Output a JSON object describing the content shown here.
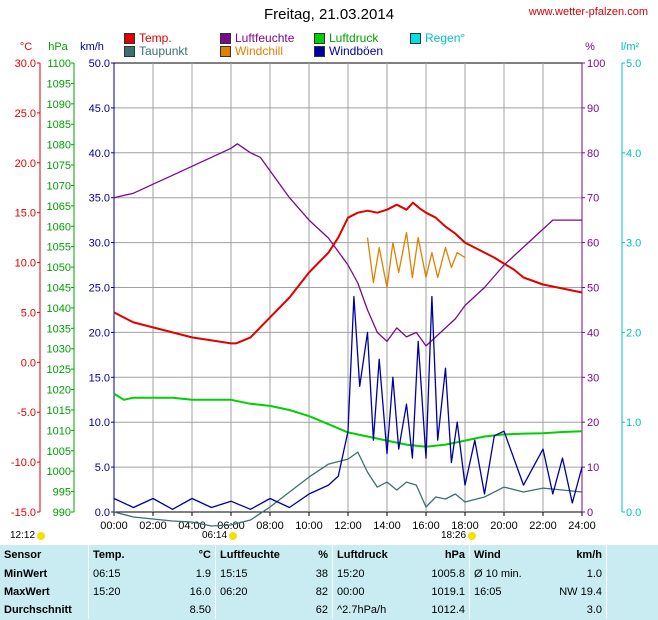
{
  "site": "www.wetter-pfalzen.com",
  "title": "Freitag, 21.03.2014",
  "legend": [
    {
      "label": "Temp.",
      "color": "#e00000"
    },
    {
      "label": "Taupunkt",
      "color": "#3c7070"
    },
    {
      "label": "Luftfeuchte",
      "color": "#7a0a8c"
    },
    {
      "label": "Windchill",
      "color": "#e08000"
    },
    {
      "label": "Luftdruck",
      "color": "#00d000"
    },
    {
      "label": "Windböen",
      "color": "#0000a0"
    },
    {
      "label": "Regen°",
      "color": "#00e0e0"
    }
  ],
  "sun": {
    "sunrise": "06:14",
    "sunset": "18:26",
    "moon": "12:12"
  },
  "chart_data": {
    "type": "line",
    "x_ticks": [
      "00:00",
      "02:00",
      "04:00",
      "06:00",
      "08:00",
      "10:00",
      "12:00",
      "14:00",
      "16:00",
      "18:00",
      "20:00",
      "22:00",
      "24:00"
    ],
    "axes": {
      "temp": {
        "unit": "°C",
        "ticks": [
          "30.0",
          "25.0",
          "20.0",
          "15.0",
          "10.0",
          "5.0",
          "0.0",
          "-5.0",
          "-10.0",
          "-15.0"
        ],
        "range": [
          -15,
          30
        ]
      },
      "pressure": {
        "unit": "hPa",
        "ticks": [
          "1100",
          "1095",
          "1090",
          "1085",
          "1080",
          "1075",
          "1070",
          "1065",
          "1060",
          "1055",
          "1050",
          "1045",
          "1040",
          "1035",
          "1030",
          "1025",
          "1020",
          "1015",
          "1010",
          "1005",
          "1000",
          "995",
          "990"
        ],
        "range": [
          990,
          1100
        ]
      },
      "wind": {
        "unit": "km/h",
        "ticks": [
          "50.0",
          "45.0",
          "40.0",
          "35.0",
          "30.0",
          "25.0",
          "20.0",
          "15.0",
          "10.0",
          "5.0",
          "0.0"
        ],
        "range": [
          0,
          50
        ]
      },
      "humidity": {
        "unit": "%",
        "ticks": [
          "100",
          "90",
          "80",
          "70",
          "60",
          "50",
          "40",
          "30",
          "20",
          "10",
          "0"
        ],
        "range": [
          0,
          100
        ]
      },
      "rain": {
        "unit": "l/m²",
        "ticks": [
          "5.0",
          "4.0",
          "3.0",
          "2.0",
          "1.0",
          "0.0"
        ],
        "range": [
          0,
          5
        ]
      }
    },
    "series": [
      {
        "name": "Temp.",
        "axis": "temp",
        "color": "#e00000",
        "x": [
          0,
          1,
          2,
          3,
          4,
          5,
          6,
          6.25,
          7,
          8,
          9,
          10,
          11,
          11.5,
          12,
          12.5,
          13,
          13.5,
          14,
          14.5,
          15,
          15.33,
          15.7,
          16,
          16.5,
          17,
          17.5,
          18,
          19,
          19.5,
          20,
          20.5,
          21,
          22,
          23,
          24
        ],
        "y": [
          5.0,
          4.0,
          3.5,
          3.0,
          2.5,
          2.2,
          1.9,
          1.9,
          2.5,
          4.5,
          6.5,
          9.0,
          11.0,
          12.5,
          14.5,
          15.0,
          15.2,
          15.0,
          15.3,
          15.8,
          15.3,
          16.0,
          15.4,
          15.0,
          14.5,
          13.6,
          12.9,
          12.0,
          11.0,
          10.5,
          9.9,
          9.3,
          8.5,
          7.8,
          7.4,
          7.0
        ]
      },
      {
        "name": "Taupunkt",
        "axis": "temp",
        "color": "#3c7070",
        "x": [
          0,
          1,
          2,
          3,
          4,
          5,
          6,
          7,
          8,
          9,
          10,
          11,
          12,
          12.5,
          13,
          13.5,
          14,
          14.5,
          15,
          15.5,
          16,
          16.5,
          17,
          17.5,
          18,
          19,
          20,
          21,
          22,
          23,
          24
        ],
        "y": [
          -15.0,
          -15.5,
          -15.7,
          -15.9,
          -16.0,
          -16.4,
          -16.3,
          -15.8,
          -14.5,
          -13.0,
          -11.5,
          -10.2,
          -9.7,
          -9.0,
          -11.0,
          -12.5,
          -12.0,
          -12.8,
          -12.0,
          -12.3,
          -14.5,
          -13.5,
          -13.7,
          -13.2,
          -14.0,
          -13.5,
          -12.5,
          -13.0,
          -12.6,
          -12.8,
          -13.0
        ]
      },
      {
        "name": "Luftfeuchte",
        "axis": "humidity",
        "color": "#7a0a8c",
        "x": [
          0,
          1,
          2,
          3,
          4,
          5,
          6,
          6.33,
          7,
          7.5,
          8,
          9,
          10,
          11,
          12,
          12.5,
          13,
          13.5,
          14,
          14.5,
          15,
          15.5,
          16,
          16.5,
          17,
          17.5,
          18,
          19,
          20,
          21,
          22,
          22.5,
          23,
          24
        ],
        "y": [
          70,
          71,
          73,
          75,
          77,
          79,
          81,
          82,
          80,
          79,
          76,
          70,
          65,
          61,
          55,
          51,
          45,
          40,
          38,
          41,
          39,
          40,
          37,
          39,
          41,
          43,
          46,
          50,
          55,
          59,
          63,
          65,
          65,
          65
        ]
      },
      {
        "name": "Windchill",
        "axis": "temp",
        "color": "#e08000",
        "x": [
          13.0,
          13.3,
          13.6,
          14.0,
          14.3,
          14.6,
          15.0,
          15.3,
          15.6,
          16.0,
          16.3,
          16.6,
          17.0,
          17.3,
          17.6,
          18.0
        ],
        "y": [
          12.5,
          8.0,
          11.5,
          7.5,
          12.0,
          9.0,
          13.0,
          8.5,
          12.5,
          8.5,
          11.0,
          8.5,
          11.5,
          9.5,
          11.0,
          10.5
        ]
      },
      {
        "name": "Luftdruck",
        "axis": "pressure",
        "color": "#00d000",
        "x": [
          0,
          0.5,
          1,
          2,
          3,
          4,
          5,
          6,
          7,
          8,
          9,
          10,
          11,
          12,
          13,
          14,
          15,
          16,
          17,
          18,
          19,
          20,
          21,
          22,
          23,
          24
        ],
        "y": [
          1019,
          1017.5,
          1018,
          1018,
          1018,
          1017.5,
          1017.5,
          1017.5,
          1016.5,
          1016,
          1015,
          1013.5,
          1011.5,
          1009.5,
          1008.5,
          1007.5,
          1006.5,
          1006,
          1006.5,
          1007.5,
          1008.5,
          1009.0,
          1009.2,
          1009.3,
          1009.6,
          1009.8
        ]
      },
      {
        "name": "Windböen",
        "axis": "wind",
        "color": "#0000a0",
        "x": [
          0,
          1,
          2,
          3,
          4,
          5,
          6,
          7,
          8,
          9,
          10,
          11,
          11.5,
          12,
          12.3,
          12.6,
          13,
          13.3,
          13.6,
          14,
          14.3,
          14.6,
          15,
          15.3,
          15.6,
          16,
          16.3,
          16.6,
          17,
          17.3,
          17.6,
          18,
          18.5,
          19,
          19.5,
          20,
          21,
          22,
          22.5,
          23,
          23.5,
          24
        ],
        "y": [
          1.5,
          0.5,
          1.5,
          0.3,
          1.5,
          0.5,
          1.2,
          0.3,
          1.5,
          0.5,
          2.0,
          3.0,
          4.0,
          9.0,
          24.0,
          14.0,
          20.0,
          8.0,
          17.0,
          6.5,
          15.0,
          7.0,
          12.0,
          6.0,
          19.0,
          6.0,
          24.0,
          8.0,
          16.0,
          5.5,
          10.0,
          3.0,
          8.0,
          2.0,
          8.5,
          9.0,
          3.0,
          7.0,
          2.0,
          6.0,
          1.0,
          5.0
        ]
      }
    ]
  },
  "table": {
    "header": {
      "sensor": "Sensor",
      "temp": "Temp.",
      "temp_unit": "°C",
      "hum": "Luftfeuchte",
      "hum_unit": "%",
      "press": "Luftdruck",
      "press_unit": "hPa",
      "wind": "Wind",
      "wind_unit": "km/h"
    },
    "rows": [
      {
        "label": "MinWert",
        "t_time": "06:15",
        "t_val": "1.9",
        "h_time": "15:15",
        "h_val": "38",
        "p_time": "15:20",
        "p_val": "1005.8",
        "w_time": "Ø 10 min.",
        "w_val": "1.0"
      },
      {
        "label": "MaxWert",
        "t_time": "15:20",
        "t_val": "16.0",
        "h_time": "06:20",
        "h_val": "82",
        "p_time": "00:00",
        "p_val": "1019.1",
        "w_time": "16:05",
        "w_val": "NW 19.4"
      },
      {
        "label": "Durchschnitt",
        "t_time": "",
        "t_val": "8.50",
        "h_time": "",
        "h_val": "62",
        "p_time": "^2.7hPa/h",
        "p_val": "1012.4",
        "w_time": "",
        "w_val": "3.0"
      }
    ]
  }
}
